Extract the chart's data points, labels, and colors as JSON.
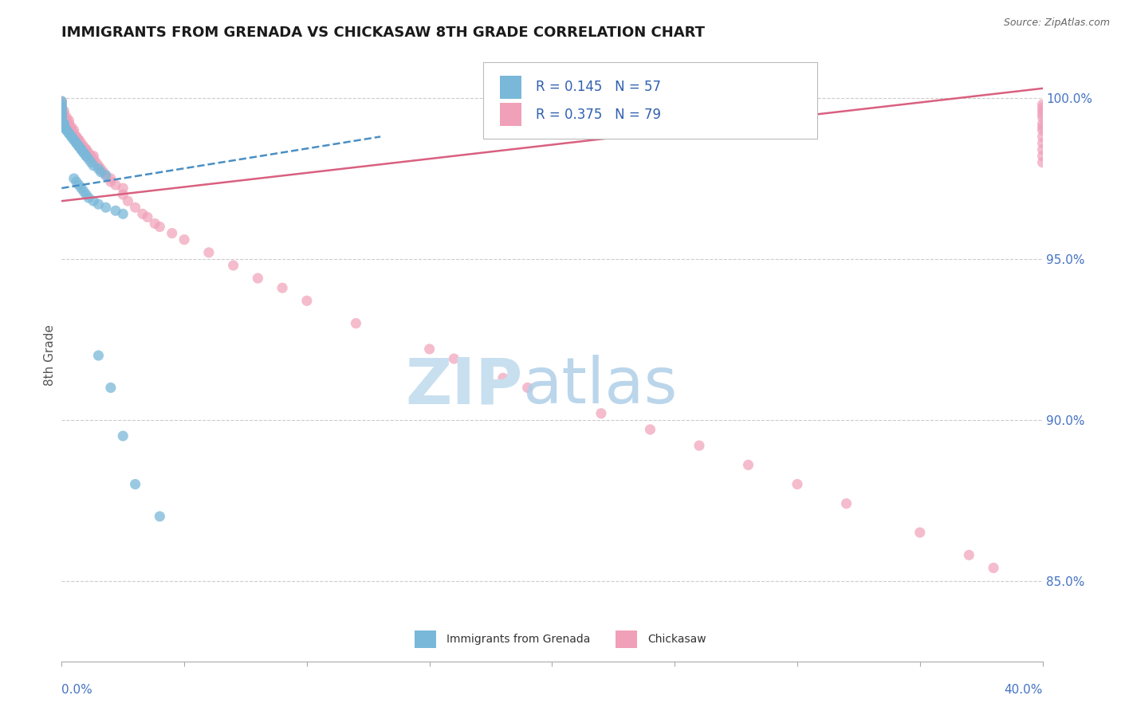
{
  "title": "IMMIGRANTS FROM GRENADA VS CHICKASAW 8TH GRADE CORRELATION CHART",
  "source": "Source: ZipAtlas.com",
  "ylabel": "8th Grade",
  "ylabel_right_ticks": [
    "100.0%",
    "95.0%",
    "90.0%",
    "85.0%"
  ],
  "ylabel_right_vals": [
    1.0,
    0.95,
    0.9,
    0.85
  ],
  "xmin": 0.0,
  "xmax": 0.4,
  "ymin": 0.825,
  "ymax": 1.015,
  "legend_blue_r": "0.145",
  "legend_blue_n": "57",
  "legend_pink_r": "0.375",
  "legend_pink_n": "79",
  "legend_label_blue": "Immigrants from Grenada",
  "legend_label_pink": "Chickasaw",
  "blue_color": "#7ab8d9",
  "pink_color": "#f0a0b8",
  "blue_line_color": "#4a8fc4",
  "pink_line_color": "#d96080",
  "watermark_zip_color": "#c8dff0",
  "watermark_atlas_color": "#b0cfe8",
  "blue_x": [
    0.0,
    0.0,
    0.0,
    0.0,
    0.0,
    0.0,
    0.0,
    0.0,
    0.0,
    0.0,
    0.0,
    0.0,
    0.001,
    0.001,
    0.001,
    0.001,
    0.002,
    0.002,
    0.003,
    0.003,
    0.004,
    0.004,
    0.005,
    0.005,
    0.006,
    0.006,
    0.007,
    0.007,
    0.008,
    0.008,
    0.009,
    0.009,
    0.01,
    0.01,
    0.011,
    0.012,
    0.013,
    0.015,
    0.016,
    0.018,
    0.005,
    0.006,
    0.007,
    0.008,
    0.009,
    0.01,
    0.011,
    0.013,
    0.015,
    0.018,
    0.022,
    0.025,
    0.015,
    0.02,
    0.025,
    0.03,
    0.04
  ],
  "blue_y": [
    0.999,
    0.998,
    0.997,
    0.997,
    0.996,
    0.996,
    0.995,
    0.995,
    0.994,
    0.994,
    0.993,
    0.993,
    0.992,
    0.992,
    0.991,
    0.991,
    0.99,
    0.99,
    0.989,
    0.989,
    0.988,
    0.988,
    0.987,
    0.987,
    0.986,
    0.986,
    0.985,
    0.985,
    0.984,
    0.984,
    0.983,
    0.983,
    0.982,
    0.982,
    0.981,
    0.98,
    0.979,
    0.978,
    0.977,
    0.976,
    0.975,
    0.974,
    0.973,
    0.972,
    0.971,
    0.97,
    0.969,
    0.968,
    0.967,
    0.966,
    0.965,
    0.964,
    0.92,
    0.91,
    0.895,
    0.88,
    0.87
  ],
  "pink_x": [
    0.0,
    0.0,
    0.0,
    0.0,
    0.001,
    0.001,
    0.001,
    0.002,
    0.002,
    0.003,
    0.003,
    0.003,
    0.004,
    0.004,
    0.005,
    0.005,
    0.006,
    0.006,
    0.007,
    0.007,
    0.008,
    0.008,
    0.009,
    0.01,
    0.01,
    0.011,
    0.012,
    0.013,
    0.013,
    0.014,
    0.015,
    0.016,
    0.017,
    0.018,
    0.02,
    0.02,
    0.022,
    0.025,
    0.025,
    0.027,
    0.03,
    0.033,
    0.035,
    0.038,
    0.04,
    0.045,
    0.05,
    0.06,
    0.07,
    0.08,
    0.09,
    0.1,
    0.12,
    0.15,
    0.16,
    0.18,
    0.19,
    0.22,
    0.24,
    0.26,
    0.28,
    0.3,
    0.32,
    0.35,
    0.37,
    0.38,
    0.4,
    0.4,
    0.4,
    0.4,
    0.4,
    0.4,
    0.4,
    0.4,
    0.4,
    0.4,
    0.4,
    0.4,
    0.4
  ],
  "pink_y": [
    0.999,
    0.998,
    0.997,
    0.996,
    0.996,
    0.995,
    0.994,
    0.994,
    0.993,
    0.993,
    0.992,
    0.991,
    0.991,
    0.99,
    0.99,
    0.989,
    0.988,
    0.988,
    0.987,
    0.987,
    0.986,
    0.985,
    0.985,
    0.984,
    0.984,
    0.983,
    0.982,
    0.982,
    0.981,
    0.98,
    0.979,
    0.978,
    0.977,
    0.976,
    0.975,
    0.974,
    0.973,
    0.972,
    0.97,
    0.968,
    0.966,
    0.964,
    0.963,
    0.961,
    0.96,
    0.958,
    0.956,
    0.952,
    0.948,
    0.944,
    0.941,
    0.937,
    0.93,
    0.922,
    0.919,
    0.913,
    0.91,
    0.902,
    0.897,
    0.892,
    0.886,
    0.88,
    0.874,
    0.865,
    0.858,
    0.854,
    0.998,
    0.997,
    0.996,
    0.995,
    0.994,
    0.992,
    0.991,
    0.99,
    0.988,
    0.986,
    0.984,
    0.982,
    0.98
  ],
  "blue_line_x0": 0.0,
  "blue_line_x1": 0.13,
  "blue_line_y0": 0.972,
  "blue_line_y1": 0.988,
  "pink_line_x0": 0.0,
  "pink_line_x1": 0.4,
  "pink_line_y0": 0.968,
  "pink_line_y1": 1.003
}
